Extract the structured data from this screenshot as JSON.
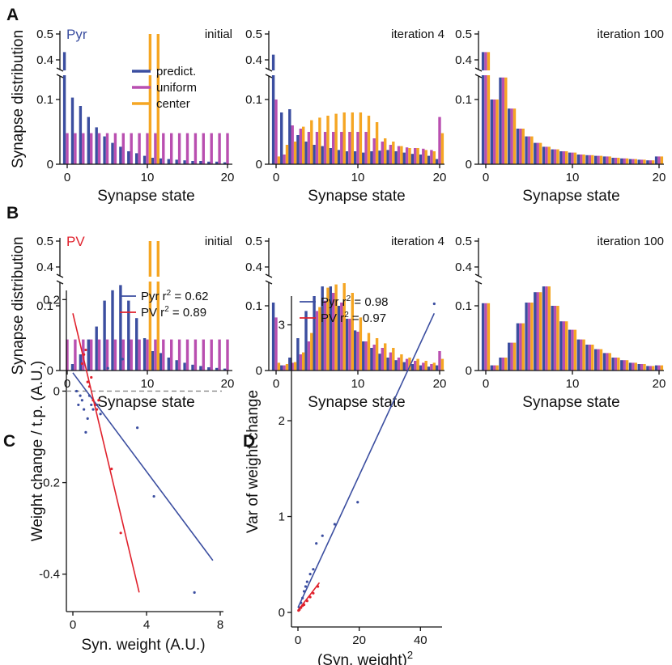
{
  "colors": {
    "predict": "#3b4ea0",
    "uniform": "#b94fb0",
    "center": "#f5a623",
    "pyr": "#3b4ea0",
    "pv": "#e0212c",
    "axis": "#111111",
    "zero_line": "#888888"
  },
  "panel_letters": [
    "A",
    "B",
    "C",
    "D"
  ],
  "row_labels": {
    "pyr": "Pyr",
    "pv": "PV"
  },
  "chart_data": [
    {
      "id": "A1",
      "type": "bar",
      "panel": "A",
      "title": "initial",
      "tag": "Pyr",
      "xlabel": "Synapse state",
      "ylabel": "Synapse distribution",
      "x_ticks": [
        "0",
        "10",
        "20"
      ],
      "y_ticks_low": [
        "0",
        "0.1"
      ],
      "y_ticks_high": [
        "0.4",
        "0.5"
      ],
      "y_axis": "broken",
      "ylim_low": [
        0,
        0.15
      ],
      "ylim_high": [
        0.38,
        0.52
      ],
      "x": [
        0,
        1,
        2,
        3,
        4,
        5,
        6,
        7,
        8,
        9,
        10,
        11,
        12,
        13,
        14,
        15,
        16,
        17,
        18,
        19,
        20
      ],
      "legend": [
        "predict.",
        "uniform",
        "center"
      ],
      "series": [
        {
          "name": "predict.",
          "values": [
            0.43,
            0.103,
            0.09,
            0.073,
            0.057,
            0.043,
            0.033,
            0.027,
            0.02,
            0.017,
            0.013,
            0.01,
            0.009,
            0.008,
            0.007,
            0.006,
            0.005,
            0.005,
            0.004,
            0.004,
            0.003
          ]
        },
        {
          "name": "uniform",
          "values": [
            0.048,
            0.048,
            0.048,
            0.048,
            0.048,
            0.048,
            0.048,
            0.048,
            0.048,
            0.048,
            0.048,
            0.048,
            0.048,
            0.048,
            0.048,
            0.048,
            0.048,
            0.048,
            0.048,
            0.048,
            0.048
          ]
        },
        {
          "name": "center",
          "values": [
            0,
            0,
            0,
            0,
            0,
            0,
            0,
            0,
            0,
            0,
            0.5,
            0.5,
            0,
            0,
            0,
            0,
            0,
            0,
            0,
            0,
            0
          ]
        }
      ]
    },
    {
      "id": "A2",
      "type": "bar",
      "panel": "A",
      "title": "iteration 4",
      "xlabel": "Synapse state",
      "x_ticks": [
        "0",
        "10",
        "20"
      ],
      "y_ticks_low": [
        "0",
        "0.1"
      ],
      "y_ticks_high": [
        "0.4",
        "0.5"
      ],
      "y_axis": "broken",
      "ylim_low": [
        0,
        0.15
      ],
      "ylim_high": [
        0.38,
        0.52
      ],
      "x": [
        0,
        1,
        2,
        3,
        4,
        5,
        6,
        7,
        8,
        9,
        10,
        11,
        12,
        13,
        14,
        15,
        16,
        17,
        18,
        19,
        20
      ],
      "series": [
        {
          "name": "predict.",
          "values": [
            0.42,
            0.08,
            0.085,
            0.045,
            0.035,
            0.03,
            0.028,
            0.025,
            0.022,
            0.02,
            0.02,
            0.018,
            0.02,
            0.021,
            0.022,
            0.02,
            0.018,
            0.016,
            0.015,
            0.013,
            0.008
          ]
        },
        {
          "name": "uniform",
          "values": [
            0.1,
            0.015,
            0.06,
            0.055,
            0.05,
            0.05,
            0.05,
            0.05,
            0.05,
            0.05,
            0.05,
            0.05,
            0.04,
            0.035,
            0.03,
            0.028,
            0.026,
            0.025,
            0.024,
            0.022,
            0.073
          ]
        },
        {
          "name": "center",
          "values": [
            0.012,
            0.03,
            0.035,
            0.058,
            0.068,
            0.072,
            0.075,
            0.078,
            0.08,
            0.08,
            0.08,
            0.075,
            0.065,
            0.04,
            0.035,
            0.028,
            0.025,
            0.025,
            0.022,
            0.02,
            0.048
          ]
        }
      ]
    },
    {
      "id": "A3",
      "type": "bar",
      "panel": "A",
      "title": "iteration 100",
      "xlabel": "Synapse state",
      "x_ticks": [
        "0",
        "10",
        "20"
      ],
      "y_ticks_low": [
        "0",
        "0.1"
      ],
      "y_ticks_high": [
        "0.4",
        "0.5"
      ],
      "y_axis": "broken",
      "ylim_low": [
        0,
        0.15
      ],
      "ylim_high": [
        0.38,
        0.52
      ],
      "x": [
        0,
        1,
        2,
        3,
        4,
        5,
        6,
        7,
        8,
        9,
        10,
        11,
        12,
        13,
        14,
        15,
        16,
        17,
        18,
        19,
        20
      ],
      "series": [
        {
          "name": "predict.",
          "values": [
            0.43,
            0.1,
            0.134,
            0.086,
            0.055,
            0.043,
            0.033,
            0.027,
            0.023,
            0.02,
            0.018,
            0.015,
            0.014,
            0.013,
            0.012,
            0.01,
            0.009,
            0.008,
            0.007,
            0.006,
            0.012
          ]
        },
        {
          "name": "uniform",
          "values": [
            0.43,
            0.1,
            0.134,
            0.086,
            0.055,
            0.043,
            0.033,
            0.027,
            0.023,
            0.02,
            0.018,
            0.015,
            0.014,
            0.013,
            0.012,
            0.01,
            0.009,
            0.008,
            0.007,
            0.006,
            0.012
          ]
        },
        {
          "name": "center",
          "values": [
            0.43,
            0.1,
            0.134,
            0.086,
            0.055,
            0.043,
            0.033,
            0.027,
            0.023,
            0.02,
            0.018,
            0.015,
            0.014,
            0.013,
            0.012,
            0.01,
            0.009,
            0.008,
            0.007,
            0.006,
            0.012
          ]
        }
      ]
    },
    {
      "id": "B1",
      "type": "bar",
      "panel": "B",
      "title": "initial",
      "tag": "PV",
      "xlabel": "Synapse state",
      "ylabel": "Synapse distribution",
      "x_ticks": [
        "0",
        "10",
        "20"
      ],
      "y_ticks_low": [
        "0",
        "0.1"
      ],
      "y_ticks_high": [
        "0.4",
        "0.5"
      ],
      "y_axis": "broken",
      "ylim_low": [
        0,
        0.15
      ],
      "ylim_high": [
        0.38,
        0.52
      ],
      "x": [
        0,
        1,
        2,
        3,
        4,
        5,
        6,
        7,
        8,
        9,
        10,
        11,
        12,
        13,
        14,
        15,
        16,
        17,
        18,
        19,
        20
      ],
      "series": [
        {
          "name": "predict.",
          "values": [
            0.0,
            0.01,
            0.025,
            0.048,
            0.068,
            0.108,
            0.124,
            0.132,
            0.108,
            0.081,
            0.05,
            0.03,
            0.027,
            0.02,
            0.016,
            0.012,
            0.009,
            0.007,
            0.005,
            0.004,
            0.003
          ]
        },
        {
          "name": "uniform",
          "values": [
            0.048,
            0.048,
            0.048,
            0.048,
            0.048,
            0.048,
            0.048,
            0.048,
            0.048,
            0.048,
            0.048,
            0.048,
            0.048,
            0.048,
            0.048,
            0.048,
            0.048,
            0.048,
            0.048,
            0.048,
            0.048
          ]
        },
        {
          "name": "center",
          "values": [
            0,
            0,
            0,
            0,
            0,
            0,
            0,
            0,
            0,
            0,
            0.5,
            0.5,
            0,
            0,
            0,
            0,
            0,
            0,
            0,
            0,
            0
          ]
        }
      ]
    },
    {
      "id": "B2",
      "type": "bar",
      "panel": "B",
      "title": "iteration 4",
      "xlabel": "Synapse state",
      "x_ticks": [
        "0",
        "10",
        "20"
      ],
      "y_ticks_low": [
        "0",
        "0.1"
      ],
      "y_ticks_high": [
        "0.4",
        "0.5"
      ],
      "y_axis": "broken",
      "ylim_low": [
        0,
        0.15
      ],
      "ylim_high": [
        0.38,
        0.52
      ],
      "x": [
        0,
        1,
        2,
        3,
        4,
        5,
        6,
        7,
        8,
        9,
        10,
        11,
        12,
        13,
        14,
        15,
        16,
        17,
        18,
        19,
        20
      ],
      "series": [
        {
          "name": "predict.",
          "values": [
            0.105,
            0.008,
            0.02,
            0.05,
            0.092,
            0.115,
            0.13,
            0.13,
            0.1,
            0.08,
            0.062,
            0.045,
            0.035,
            0.026,
            0.02,
            0.016,
            0.013,
            0.01,
            0.008,
            0.006,
            0.008
          ]
        },
        {
          "name": "uniform",
          "values": [
            0.082,
            0.008,
            0.012,
            0.025,
            0.045,
            0.092,
            0.108,
            0.12,
            0.105,
            0.08,
            0.06,
            0.045,
            0.04,
            0.035,
            0.028,
            0.02,
            0.018,
            0.015,
            0.012,
            0.01,
            0.03
          ]
        },
        {
          "name": "center",
          "values": [
            0.012,
            0.01,
            0.013,
            0.028,
            0.058,
            0.098,
            0.128,
            0.133,
            0.135,
            0.12,
            0.082,
            0.058,
            0.05,
            0.042,
            0.035,
            0.025,
            0.02,
            0.018,
            0.015,
            0.012,
            0.018
          ]
        }
      ]
    },
    {
      "id": "B3",
      "type": "bar",
      "panel": "B",
      "title": "iteration 100",
      "xlabel": "Synapse state",
      "x_ticks": [
        "0",
        "10",
        "20"
      ],
      "y_ticks_low": [
        "0",
        "0.1"
      ],
      "y_ticks_high": [
        "0.4",
        "0.5"
      ],
      "y_axis": "broken",
      "ylim_low": [
        0,
        0.15
      ],
      "ylim_high": [
        0.38,
        0.52
      ],
      "x": [
        0,
        1,
        2,
        3,
        4,
        5,
        6,
        7,
        8,
        9,
        10,
        11,
        12,
        13,
        14,
        15,
        16,
        17,
        18,
        19,
        20
      ],
      "series": [
        {
          "name": "predict.",
          "values": [
            0.104,
            0.008,
            0.02,
            0.043,
            0.073,
            0.105,
            0.121,
            0.13,
            0.1,
            0.076,
            0.063,
            0.048,
            0.04,
            0.033,
            0.027,
            0.02,
            0.016,
            0.012,
            0.01,
            0.007,
            0.008
          ]
        },
        {
          "name": "uniform",
          "values": [
            0.104,
            0.008,
            0.02,
            0.043,
            0.073,
            0.105,
            0.121,
            0.13,
            0.1,
            0.076,
            0.063,
            0.048,
            0.04,
            0.033,
            0.027,
            0.02,
            0.016,
            0.012,
            0.01,
            0.007,
            0.008
          ]
        },
        {
          "name": "center",
          "values": [
            0.104,
            0.008,
            0.02,
            0.043,
            0.073,
            0.105,
            0.121,
            0.13,
            0.1,
            0.076,
            0.063,
            0.048,
            0.04,
            0.033,
            0.027,
            0.02,
            0.016,
            0.012,
            0.01,
            0.007,
            0.008
          ]
        }
      ]
    },
    {
      "id": "C",
      "type": "scatter",
      "panel": "C",
      "xlabel": "Syn. weight (A.U.)",
      "ylabel": "Weight change / t.p. (A.U.)",
      "xlim": [
        0,
        8
      ],
      "ylim": [
        -0.45,
        0.22
      ],
      "x_ticks": [
        0,
        4,
        8
      ],
      "y_ticks": [
        -0.4,
        -0.2,
        0,
        0.2
      ],
      "x_tick_labels": [
        "0",
        "4",
        "8"
      ],
      "y_tick_labels": [
        "-0.4",
        "-0.2",
        "0",
        "0.2"
      ],
      "zero_line": true,
      "series": [
        {
          "name": "Pyr r2 = 0.62",
          "r2_label": "Pyr r",
          "r2_value": " = 0.62",
          "points": [
            [
              0.2,
              0.0
            ],
            [
              0.3,
              -0.03
            ],
            [
              0.4,
              -0.01
            ],
            [
              0.5,
              -0.02
            ],
            [
              0.6,
              -0.04
            ],
            [
              0.7,
              -0.09
            ],
            [
              0.8,
              -0.06
            ],
            [
              0.9,
              -0.01
            ],
            [
              1.0,
              -0.03
            ],
            [
              1.1,
              -0.04
            ],
            [
              1.3,
              -0.03
            ],
            [
              1.5,
              -0.05
            ],
            [
              1.9,
              0.05
            ],
            [
              2.7,
              0.07
            ],
            [
              3.5,
              -0.08
            ],
            [
              4.4,
              -0.23
            ],
            [
              6.6,
              -0.44
            ]
          ],
          "fit": [
            [
              0,
              0.04
            ],
            [
              7.6,
              -0.37
            ]
          ]
        },
        {
          "name": "PV r2 = 0.89",
          "r2_label": "PV r",
          "r2_value": " = 0.89",
          "points": [
            [
              0.5,
              0.06
            ],
            [
              0.6,
              0.08
            ],
            [
              0.7,
              0.09
            ],
            [
              0.8,
              0.02
            ],
            [
              0.9,
              0.01
            ],
            [
              1.0,
              0.03
            ],
            [
              1.1,
              -0.02
            ],
            [
              1.2,
              -0.03
            ],
            [
              1.3,
              -0.04
            ],
            [
              1.4,
              -0.02
            ],
            [
              2.1,
              -0.17
            ],
            [
              2.6,
              -0.31
            ]
          ],
          "fit": [
            [
              0,
              0.17
            ],
            [
              3.6,
              -0.44
            ]
          ]
        }
      ]
    },
    {
      "id": "D",
      "type": "scatter",
      "panel": "D",
      "xlabel": "(Syn. weight)",
      "xlabel_sup": "2",
      "ylabel": "Var of weight change",
      "xlim": [
        0,
        46
      ],
      "ylim": [
        0,
        3.3
      ],
      "x_ticks": [
        0,
        20,
        40
      ],
      "y_ticks": [
        0,
        1,
        2,
        3
      ],
      "x_tick_labels": [
        "0",
        "20",
        "40"
      ],
      "y_tick_labels": [
        "0",
        "1",
        "2",
        "3"
      ],
      "series": [
        {
          "name": "Pyr r2 = 0.98",
          "r2_label": "Pyr r",
          "r2_value": " = 0.98",
          "points": [
            [
              0.5,
              0.05
            ],
            [
              1,
              0.1
            ],
            [
              1.5,
              0.15
            ],
            [
              2,
              0.22
            ],
            [
              2.5,
              0.27
            ],
            [
              3,
              0.32
            ],
            [
              4,
              0.4
            ],
            [
              5,
              0.45
            ],
            [
              6,
              0.72
            ],
            [
              8,
              0.8
            ],
            [
              12,
              0.92
            ],
            [
              19.5,
              1.15
            ],
            [
              44.5,
              3.22
            ]
          ],
          "fit": [
            [
              0,
              0.05
            ],
            [
              44.5,
              3.12
            ]
          ]
        },
        {
          "name": "PV r2 = 0.97",
          "r2_label": "PV r",
          "r2_value": " = 0.97",
          "points": [
            [
              0.2,
              0.02
            ],
            [
              0.5,
              0.03
            ],
            [
              1,
              0.05
            ],
            [
              1.5,
              0.07
            ],
            [
              2,
              0.08
            ],
            [
              3,
              0.12
            ],
            [
              4,
              0.16
            ],
            [
              5,
              0.2
            ],
            [
              6.5,
              0.27
            ]
          ],
          "fit": [
            [
              0,
              0.02
            ],
            [
              7,
              0.31
            ]
          ]
        }
      ]
    }
  ]
}
